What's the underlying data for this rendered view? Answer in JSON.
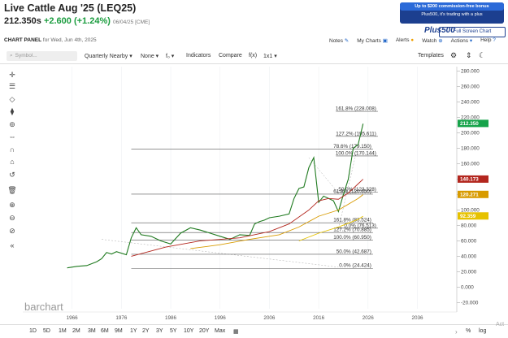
{
  "header": {
    "title": "Live Cattle Aug '25 (LEQ25)",
    "price": "212.350s",
    "change": "+2.600 (+1.24%)",
    "date_exchange": "06/04/25 [CME]"
  },
  "ad": {
    "line1": "Up to $200 commission-free bonus",
    "line2": "Plus500, it's trading with a plus",
    "brand": "Plus500",
    "button": "Full Screen Chart"
  },
  "panel": {
    "label": "CHART PANEL",
    "date": "for Wed, Jun 4th, 2025",
    "links": [
      "Notes",
      "My Charts",
      "Alerts",
      "Watch",
      "Actions",
      "Help"
    ]
  },
  "toolbar": {
    "symbol_placeholder": "Symbol...",
    "period": "Quarterly Nearby",
    "none": "None",
    "fx_icon": "f₀",
    "indicators": "Indicators",
    "compare": "Compare",
    "fx": "f(x)",
    "ratio": "1x1",
    "templates": "Templates"
  },
  "tools": [
    "crosshair-icon",
    "lines-icon",
    "shapes-icon",
    "pattern-icon",
    "fib-icon",
    "measure-icon",
    "text-icon",
    "magnet-icon",
    "lock-icon",
    "undo-icon",
    "trash-icon",
    "zoom-in-icon",
    "zoom-out-icon",
    "collapse-icon"
  ],
  "chart_data": {
    "type": "line",
    "title": "",
    "x_ticks": [
      "1966",
      "1976",
      "1986",
      "1996",
      "2006",
      "2016",
      "2026",
      "2036"
    ],
    "y_ticks": [
      280,
      260,
      240,
      220,
      200,
      180,
      160,
      140,
      120,
      100,
      80,
      60,
      40,
      20,
      0,
      -20
    ],
    "y_ticks_labels": [
      "280.000",
      "260.000",
      "240.000",
      "220.000",
      "200.000",
      "180.000",
      "160.000",
      "140.000",
      "120.000",
      "100.000",
      "80.000",
      "60.000",
      "40.000",
      "20.000",
      "0.000",
      "-20.000"
    ],
    "ylim": [
      -28,
      286
    ],
    "xlim": [
      1956,
      2044
    ],
    "price_labels": [
      {
        "value": 212.35,
        "text": "212.350",
        "color": "#16a34a"
      },
      {
        "value": 140.173,
        "text": "140.173",
        "color": "#b3261e"
      },
      {
        "value": 120.271,
        "text": "120.271",
        "color": "#d89b00"
      },
      {
        "value": 92.359,
        "text": "92.359",
        "color": "#e6c200"
      }
    ],
    "fib_levels": [
      {
        "value": 228.008,
        "label": "161.8% (228.008)",
        "x1": 2019.5,
        "x2": 2028
      },
      {
        "value": 195.611,
        "label": "127.2% (195.611)",
        "x1": 2019.5,
        "x2": 2028
      },
      {
        "value": 179.15,
        "label": "78.6% (179.150)",
        "x1": 1978,
        "x2": 2027
      },
      {
        "value": 170.144,
        "label": "100.0% (170.144)",
        "x1": 2019.5,
        "x2": 2028
      },
      {
        "value": 123.328,
        "label": "50.0% (123.328)",
        "x1": 2019.5,
        "x2": 2028
      },
      {
        "value": 120.65,
        "label": "61.8% (120.650)",
        "x1": 1978,
        "x2": 2027
      },
      {
        "value": 83.524,
        "label": "161.8% (83.524)",
        "x1": 1978,
        "x2": 2027
      },
      {
        "value": 76.513,
        "label": "0.0% (76.513)",
        "x1": 2019.5,
        "x2": 2028
      },
      {
        "value": 70.885,
        "label": "127.2% (70.885)",
        "x1": 1978,
        "x2": 2027
      },
      {
        "value": 60.95,
        "label": "100.0% (60.950)",
        "x1": 1978,
        "x2": 2027
      },
      {
        "value": 42.687,
        "label": "50.0% (42.687)",
        "x1": 1978,
        "x2": 2027
      },
      {
        "value": 24.424,
        "label": "0.0% (24.424)",
        "x1": 1978,
        "x2": 2027
      }
    ],
    "series": [
      {
        "name": "",
        "color": "#1f7a1f",
        "x": [
          1965,
          1967,
          1969,
          1971,
          1972,
          1973,
          1974,
          1975,
          1977,
          1978,
          1979,
          1980,
          1982,
          1984,
          1986,
          1988,
          1990,
          1992,
          1994,
          1996,
          1998,
          2000,
          2002,
          2003,
          2004,
          2005,
          2006,
          2008,
          2010,
          2011,
          2012,
          2013,
          2014,
          2015,
          2016,
          2017,
          2018,
          2019,
          2020,
          2021,
          2022,
          2023,
          2024,
          2025
        ],
        "y": [
          25,
          27,
          28,
          33,
          37,
          45,
          43,
          46,
          42,
          64,
          77,
          68,
          66,
          60,
          56,
          70,
          77,
          74,
          70,
          66,
          62,
          68,
          67,
          82,
          85,
          87,
          90,
          92,
          95,
          115,
          128,
          130,
          155,
          168,
          110,
          118,
          115,
          112,
          98,
          120,
          140,
          180,
          185,
          212
        ]
      },
      {
        "name": "",
        "color": "#b3261e",
        "x": [
          1978,
          1985,
          1992,
          2000,
          2006,
          2010,
          2014,
          2016,
          2018,
          2020,
          2022,
          2024,
          2025
        ],
        "y": [
          40,
          52,
          60,
          64,
          72,
          82,
          100,
          112,
          115,
          114,
          122,
          134,
          140
        ]
      },
      {
        "name": "",
        "color": "#d89b00",
        "x": [
          1990,
          1996,
          2002,
          2008,
          2012,
          2016,
          2020,
          2024,
          2025
        ],
        "y": [
          50,
          55,
          62,
          68,
          78,
          92,
          100,
          115,
          120
        ]
      },
      {
        "name": "",
        "color": "#e6c200",
        "x": [
          2012,
          2016,
          2020,
          2024,
          2025
        ],
        "y": [
          60,
          70,
          78,
          88,
          92
        ]
      }
    ]
  },
  "bottom": {
    "logo": "barchart",
    "ranges": [
      "1D",
      "5D",
      "1M",
      "2M",
      "3M",
      "6M",
      "9M",
      "1Y",
      "2Y",
      "3Y",
      "5Y",
      "10Y",
      "20Y",
      "Max"
    ],
    "pct": "%",
    "log": "log",
    "activate": "Act"
  }
}
